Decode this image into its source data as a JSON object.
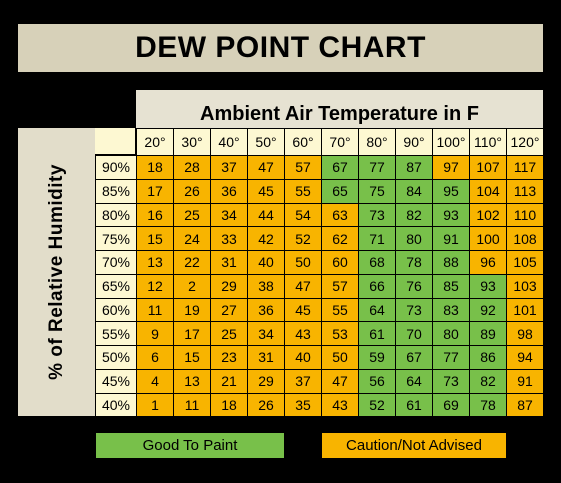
{
  "title": "DEW POINT CHART",
  "x_header": "Ambient Air Temperature in F",
  "y_header": "% of Relative Humidity",
  "legend": {
    "good": "Good To Paint",
    "caution": "Caution/Not Advised"
  },
  "colors": {
    "good": "#78c04a",
    "caution": "#f8b400",
    "header": "#fdf8d2"
  },
  "chart_data": {
    "type": "table",
    "title": "DEW POINT CHART",
    "xlabel": "Ambient Air Temperature in F",
    "ylabel": "% of Relative Humidity",
    "columns": [
      "20°",
      "30°",
      "40°",
      "50°",
      "60°",
      "70°",
      "80°",
      "90°",
      "100°",
      "110°",
      "120°"
    ],
    "rows": [
      {
        "label": "90%",
        "values": [
          18,
          28,
          37,
          47,
          57,
          67,
          77,
          87,
          97,
          107,
          117
        ],
        "status": [
          "caution",
          "caution",
          "caution",
          "caution",
          "caution",
          "good",
          "good",
          "good",
          "caution",
          "caution",
          "caution"
        ]
      },
      {
        "label": "85%",
        "values": [
          17,
          26,
          36,
          45,
          55,
          65,
          75,
          84,
          95,
          104,
          113
        ],
        "status": [
          "caution",
          "caution",
          "caution",
          "caution",
          "caution",
          "good",
          "good",
          "good",
          "good",
          "caution",
          "caution"
        ]
      },
      {
        "label": "80%",
        "values": [
          16,
          25,
          34,
          44,
          54,
          63,
          73,
          82,
          93,
          102,
          110
        ],
        "status": [
          "caution",
          "caution",
          "caution",
          "caution",
          "caution",
          "caution",
          "good",
          "good",
          "good",
          "caution",
          "caution"
        ]
      },
      {
        "label": "75%",
        "values": [
          15,
          24,
          33,
          42,
          52,
          62,
          71,
          80,
          91,
          100,
          108
        ],
        "status": [
          "caution",
          "caution",
          "caution",
          "caution",
          "caution",
          "caution",
          "good",
          "good",
          "good",
          "caution",
          "caution"
        ]
      },
      {
        "label": "70%",
        "values": [
          13,
          22,
          31,
          40,
          50,
          60,
          68,
          78,
          88,
          96,
          105
        ],
        "status": [
          "caution",
          "caution",
          "caution",
          "caution",
          "caution",
          "caution",
          "good",
          "good",
          "good",
          "caution",
          "caution"
        ]
      },
      {
        "label": "65%",
        "values": [
          12,
          2,
          29,
          38,
          47,
          57,
          66,
          76,
          85,
          93,
          103
        ],
        "status": [
          "caution",
          "caution",
          "caution",
          "caution",
          "caution",
          "caution",
          "good",
          "good",
          "good",
          "good",
          "caution"
        ]
      },
      {
        "label": "60%",
        "values": [
          11,
          19,
          27,
          36,
          45,
          55,
          64,
          73,
          83,
          92,
          101
        ],
        "status": [
          "caution",
          "caution",
          "caution",
          "caution",
          "caution",
          "caution",
          "good",
          "good",
          "good",
          "good",
          "caution"
        ]
      },
      {
        "label": "55%",
        "values": [
          9,
          17,
          25,
          34,
          43,
          53,
          61,
          70,
          80,
          89,
          98
        ],
        "status": [
          "caution",
          "caution",
          "caution",
          "caution",
          "caution",
          "caution",
          "good",
          "good",
          "good",
          "good",
          "caution"
        ]
      },
      {
        "label": "50%",
        "values": [
          6,
          15,
          23,
          31,
          40,
          50,
          59,
          67,
          77,
          86,
          94
        ],
        "status": [
          "caution",
          "caution",
          "caution",
          "caution",
          "caution",
          "caution",
          "good",
          "good",
          "good",
          "good",
          "caution"
        ]
      },
      {
        "label": "45%",
        "values": [
          4,
          13,
          21,
          29,
          37,
          47,
          56,
          64,
          73,
          82,
          91
        ],
        "status": [
          "caution",
          "caution",
          "caution",
          "caution",
          "caution",
          "caution",
          "good",
          "good",
          "good",
          "good",
          "caution"
        ]
      },
      {
        "label": "40%",
        "values": [
          1,
          11,
          18,
          26,
          35,
          43,
          52,
          61,
          69,
          78,
          87
        ],
        "status": [
          "caution",
          "caution",
          "caution",
          "caution",
          "caution",
          "caution",
          "good",
          "good",
          "good",
          "good",
          "caution"
        ]
      }
    ]
  }
}
